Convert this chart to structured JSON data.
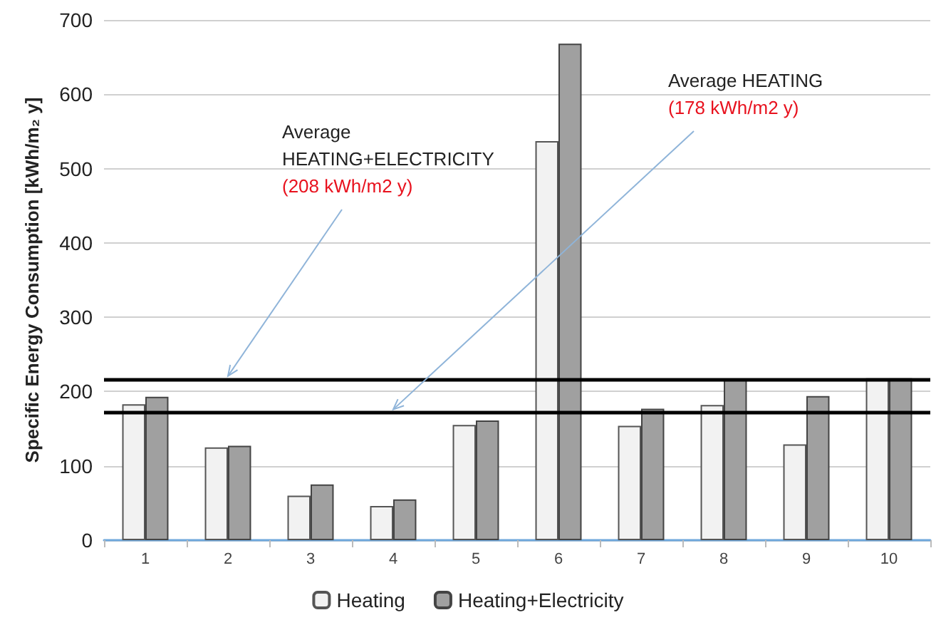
{
  "chart_data": {
    "type": "bar",
    "ylabel": "Specific Energy Consumption [kWh/m₂ y]",
    "categories": [
      "1",
      "2",
      "3",
      "4",
      "5",
      "6",
      "7",
      "8",
      "9",
      "10"
    ],
    "series": [
      {
        "name": "Heating",
        "color": "#f2f2f2",
        "values": [
          183,
          125,
          60,
          46,
          155,
          537,
          154,
          182,
          129,
          218
        ]
      },
      {
        "name": "Heating+Electricity",
        "color": "#a0a0a0",
        "values": [
          193,
          127,
          75,
          55,
          161,
          668,
          177,
          216,
          194,
          218
        ]
      }
    ],
    "ylim": [
      0,
      700
    ],
    "yticks": [
      0,
      100,
      200,
      300,
      400,
      500,
      600,
      700
    ],
    "grid": "y",
    "legend": "bottom",
    "ref_lines": [
      {
        "axis": "y",
        "value": 217,
        "label": "Average\nHEATING+ELECTRICITY\n(208 kWh/m2 y)",
        "color": "#000000"
      },
      {
        "axis": "y",
        "value": 172,
        "label": "Average HEATING\n(178 kWh/m2 y)",
        "color": "#000000"
      }
    ]
  }
}
